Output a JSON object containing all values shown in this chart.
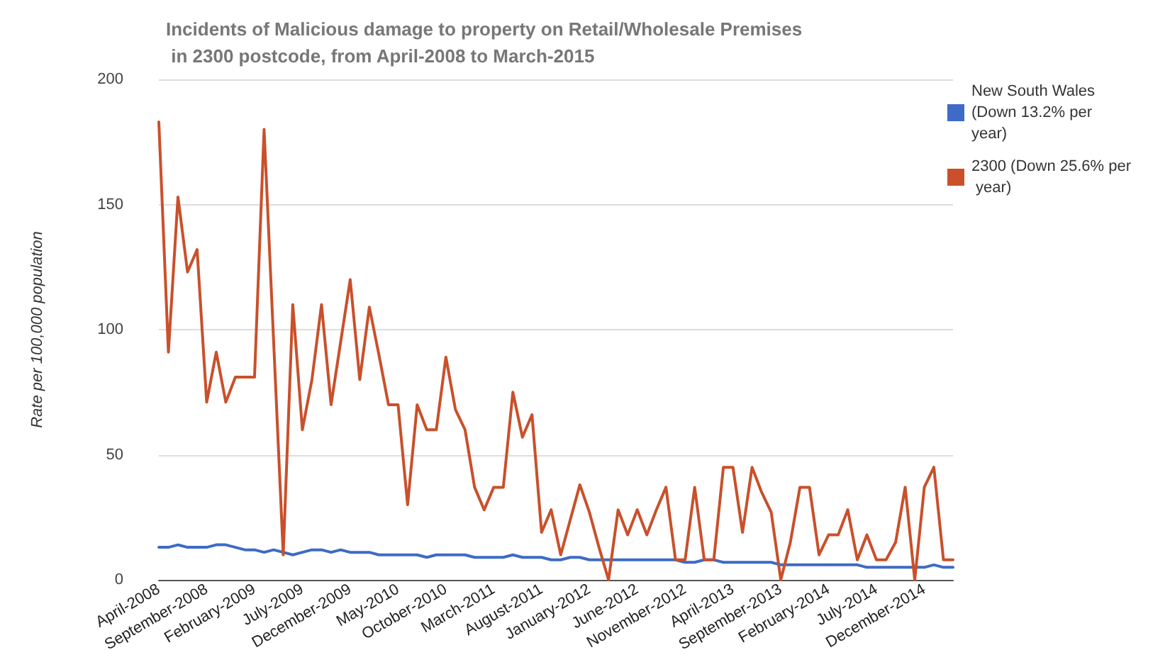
{
  "chart_data": {
    "type": "line",
    "title": "Incidents of Malicious damage to property on Retail/Wholesale Premises in 2300 postcode, from April-2008 to March-2015",
    "ylabel": "Rate per 100,000 population",
    "categories": [
      "April-2008",
      null,
      null,
      null,
      null,
      "September-2008",
      null,
      null,
      null,
      null,
      "February-2009",
      null,
      null,
      null,
      null,
      "July-2009",
      null,
      null,
      null,
      null,
      "December-2009",
      null,
      null,
      null,
      null,
      "May-2010",
      null,
      null,
      null,
      null,
      "October-2010",
      null,
      null,
      null,
      null,
      "March-2011",
      null,
      null,
      null,
      null,
      "August-2011",
      null,
      null,
      null,
      null,
      "January-2012",
      null,
      null,
      null,
      null,
      "June-2012",
      null,
      null,
      null,
      null,
      "November-2012",
      null,
      null,
      null,
      null,
      "April-2013",
      null,
      null,
      null,
      null,
      "September-2013",
      null,
      null,
      null,
      null,
      "February-2014",
      null,
      null,
      null,
      null,
      "July-2014",
      null,
      null,
      null,
      null,
      "December-2014",
      null,
      null,
      null
    ],
    "series": [
      {
        "name": "New South Wales (Down 13.2% per year)",
        "color": "#3d6bc6",
        "values": [
          13,
          13,
          14,
          13,
          13,
          13,
          14,
          14,
          13,
          12,
          12,
          11,
          12,
          11,
          10,
          11,
          12,
          12,
          11,
          12,
          11,
          11,
          11,
          10,
          10,
          10,
          10,
          10,
          9,
          10,
          10,
          10,
          10,
          9,
          9,
          9,
          9,
          10,
          9,
          9,
          9,
          8,
          8,
          9,
          9,
          8,
          8,
          8,
          8,
          8,
          8,
          8,
          8,
          8,
          8,
          7,
          7,
          8,
          8,
          7,
          7,
          7,
          7,
          7,
          7,
          6,
          6,
          6,
          6,
          6,
          6,
          6,
          6,
          6,
          5,
          5,
          5,
          5,
          5,
          5,
          5,
          6,
          5,
          5
        ]
      },
      {
        "name": "2300 (Down 25.6% per year)",
        "color": "#c9502b",
        "values": [
          183,
          91,
          153,
          123,
          132,
          71,
          91,
          71,
          81,
          81,
          81,
          180,
          95,
          10,
          110,
          60,
          80,
          110,
          70,
          95,
          120,
          80,
          109,
          90,
          70,
          70,
          30,
          70,
          60,
          60,
          89,
          68,
          60,
          37,
          28,
          37,
          37,
          75,
          57,
          66,
          19,
          28,
          10,
          24,
          38,
          27,
          13,
          0,
          28,
          18,
          28,
          18,
          28,
          37,
          8,
          8,
          37,
          8,
          8,
          45,
          45,
          19,
          45,
          35,
          27,
          0,
          15,
          37,
          37,
          10,
          18,
          18,
          28,
          8,
          18,
          8,
          8,
          15,
          37,
          0,
          37,
          45,
          8,
          8
        ]
      }
    ],
    "ylim": [
      0,
      200
    ],
    "yticks": [
      0,
      50,
      100,
      150,
      200
    ],
    "grid": "y",
    "legend": "top right",
    "marker": "none",
    "line_style": "solid"
  }
}
